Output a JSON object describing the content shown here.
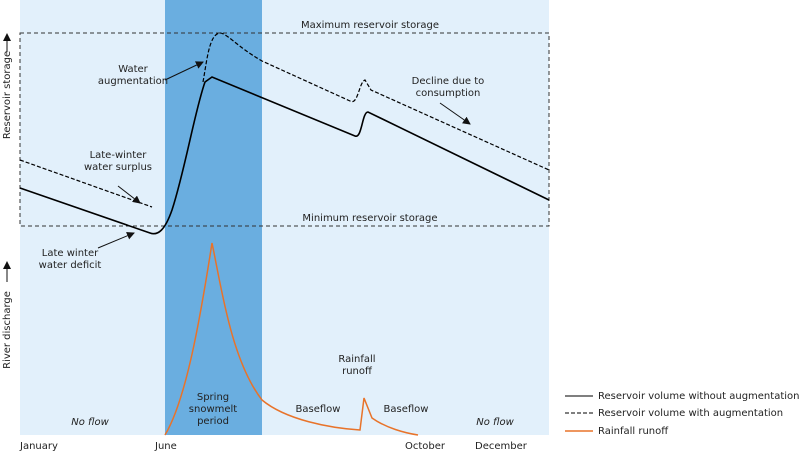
{
  "diagram": {
    "left_labels": [
      "Reservoir storage",
      "River discharge"
    ],
    "reference_lines": [
      "Maximum reservoir storage",
      "Minimum reservoir storage"
    ],
    "annotations": [
      [
        "Water",
        "augmentation"
      ],
      [
        "Decline due to",
        "consumption"
      ],
      [
        "Late-winter",
        "water surplus"
      ],
      [
        "Late winter",
        "water deficit"
      ],
      [
        "Rainfall",
        "runoff"
      ],
      [
        "Spring",
        "snowmelt",
        "period"
      ],
      [
        "Baseflow"
      ],
      [
        "Baseflow"
      ],
      [
        "No flow"
      ],
      [
        "No flow"
      ]
    ],
    "months": [
      "January",
      "June",
      "October",
      "December"
    ],
    "legend": [
      "Reservoir volume without augmentation",
      "Reservoir volume with augmentation",
      "Rainfall runoff"
    ]
  }
}
